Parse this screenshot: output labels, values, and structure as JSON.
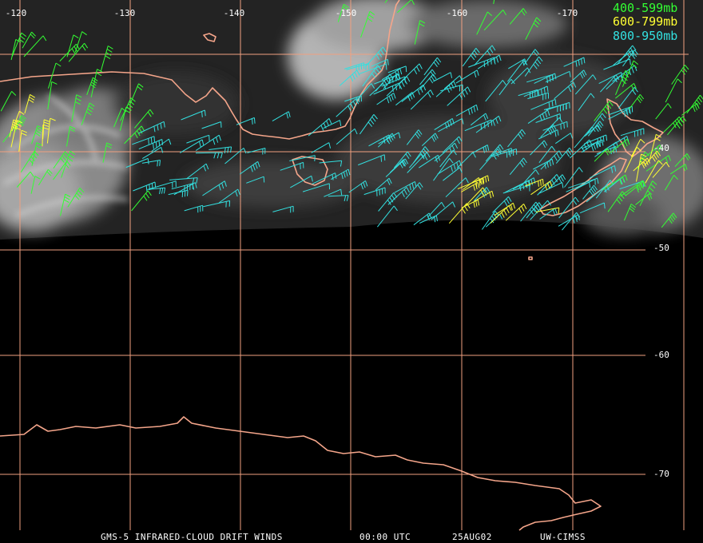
{
  "longitude_labels": [
    "-120",
    "-130",
    "-140",
    "-150",
    "-160",
    "-170"
  ],
  "latitude_labels": [
    "-40",
    "-50",
    "-60",
    "-70"
  ],
  "legend": [
    {
      "label": "400-599mb",
      "color": "#33ff33"
    },
    {
      "label": "600-799mb",
      "color": "#ffff33"
    },
    {
      "label": "800-950mb",
      "color": "#33e0e0"
    }
  ],
  "footer": {
    "product": "GMS-5 INFRARED-CLOUD DRIFT WINDS",
    "time": "00:00 UTC",
    "date": "25AUG02",
    "source": "UW-CIMSS"
  },
  "colors": {
    "background": "#000000",
    "grid": "#f0a080",
    "coastline": "#f4a58a"
  },
  "icons": [
    "wind-barb-icon"
  ]
}
